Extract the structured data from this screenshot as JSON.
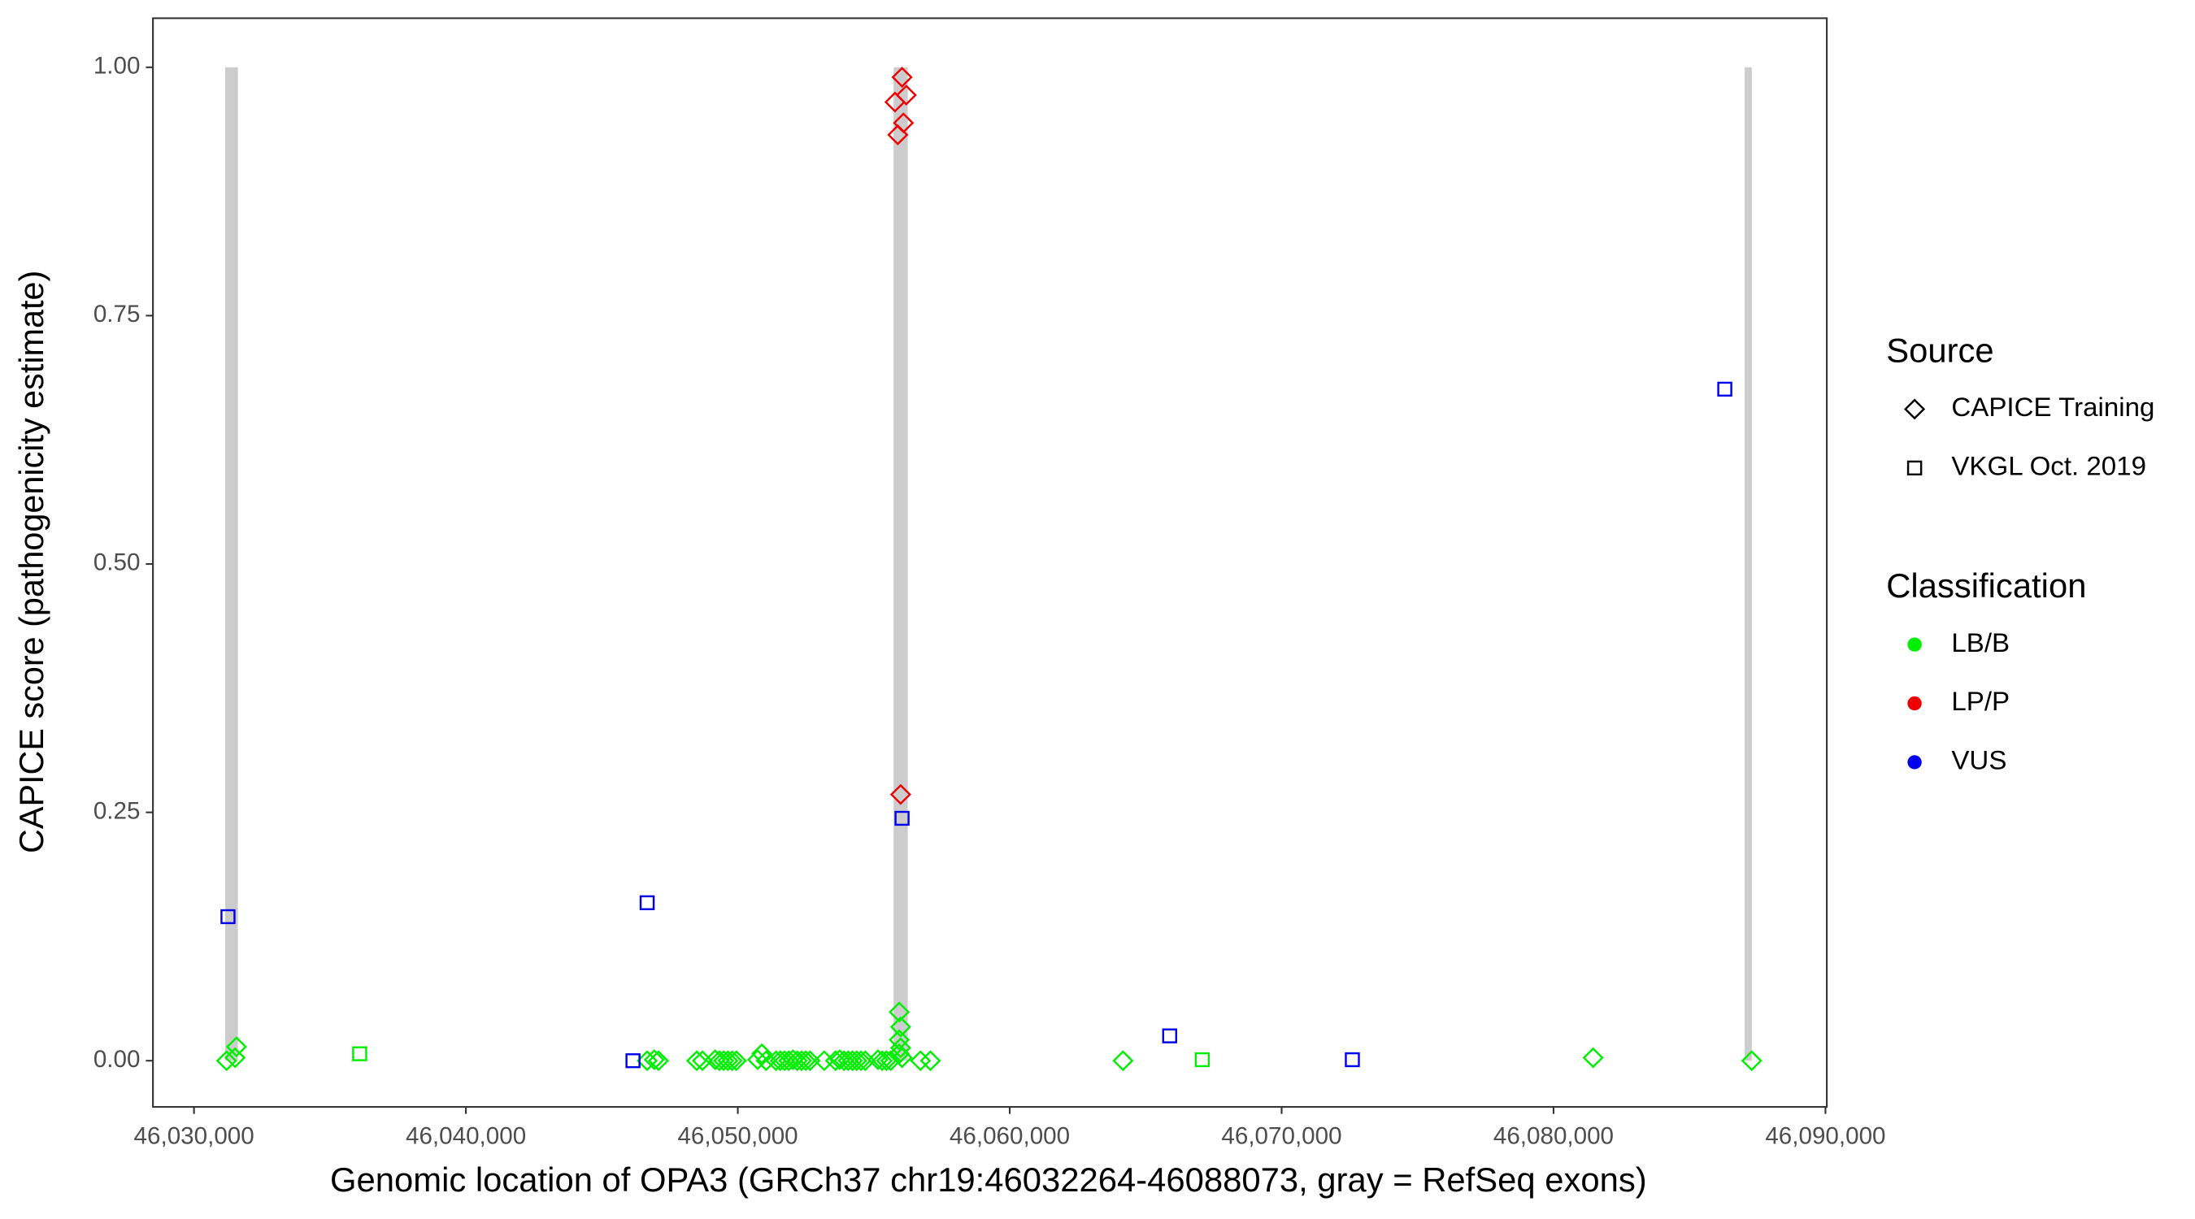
{
  "chart_data": {
    "type": "scatter",
    "xlabel": "Genomic location of OPA3 (GRCh37 chr19:46032264-46088073, gray = RefSeq exons)",
    "ylabel": "CAPICE score (pathogenicity estimate)",
    "xlim": [
      46028490,
      46090050
    ],
    "ylim": [
      -0.0465,
      1.0494
    ],
    "xticks": [
      {
        "value": 46030000,
        "label": "46,030,000"
      },
      {
        "value": 46040000,
        "label": "46,040,000"
      },
      {
        "value": 46050000,
        "label": "46,050,000"
      },
      {
        "value": 46060000,
        "label": "46,060,000"
      },
      {
        "value": 46070000,
        "label": "46,070,000"
      },
      {
        "value": 46080000,
        "label": "46,080,000"
      },
      {
        "value": 46090000,
        "label": "46,090,000"
      }
    ],
    "yticks": [
      {
        "value": 0,
        "label": "0.00"
      },
      {
        "value": 0.25,
        "label": "0.25"
      },
      {
        "value": 0.5,
        "label": "0.50"
      },
      {
        "value": 0.75,
        "label": "0.75"
      },
      {
        "value": 1,
        "label": "1.00"
      }
    ],
    "exons": [
      {
        "start": 46031146,
        "end": 46031615
      },
      {
        "start": 46055729,
        "end": 46056250
      },
      {
        "start": 46087031,
        "end": 46087292
      }
    ],
    "exon_color": "#cccccc",
    "legend": {
      "source": {
        "title": "Source",
        "entries": [
          {
            "name": "CAPICE Training",
            "shape": "diamond"
          },
          {
            "name": "VKGL Oct. 2019",
            "shape": "square"
          }
        ]
      },
      "classification": {
        "title": "Classification",
        "entries": [
          {
            "name": "LB/B",
            "color": "#00ee00"
          },
          {
            "name": "LP/P",
            "color": "#ee0000"
          },
          {
            "name": "VUS",
            "color": "#0000ee"
          }
        ]
      }
    },
    "series": [
      {
        "shape": "diamond",
        "color": "#00ee00",
        "x": [
          46031198,
          46031562,
          46031510,
          46046666,
          46046927,
          46047082,
          46048488,
          46048697,
          46049165,
          46049322,
          46049478,
          46049634,
          46049790,
          46049947,
          46050728,
          46050884,
          46051040,
          46051405,
          46051561,
          46051717,
          46051874,
          46052030,
          46052186,
          46052342,
          46052499,
          46052655,
          46053176,
          46053592,
          46053748,
          46053905,
          46054061,
          46054217,
          46054373,
          46054530,
          46054686,
          46055155,
          46055311,
          46055467,
          46055623,
          46056717,
          46057082,
          46055936,
          46055988,
          46055936,
          46055988,
          46055936,
          46056040,
          46064165,
          46081455,
          46087288
        ],
        "values": [
          0,
          0.014,
          0.003,
          0,
          0.001,
          0,
          0,
          0,
          0.001,
          0,
          0,
          0,
          0,
          0,
          0.001,
          0.007,
          0,
          0,
          0,
          0,
          0,
          0.001,
          0,
          0,
          0,
          0,
          0,
          0,
          0.001,
          0,
          0,
          0,
          0,
          0,
          0,
          0.001,
          0,
          0,
          0,
          0,
          0,
          0.049,
          0.034,
          0.021,
          0.013,
          0.007,
          0.003,
          0,
          0.003,
          0
        ]
      },
      {
        "shape": "diamond",
        "color": "#ee0000",
        "x": [
          46056040,
          46055780,
          46056196,
          46056092,
          46055884,
          46055988
        ],
        "values": [
          0.99,
          0.965,
          0.972,
          0.944,
          0.932,
          0.268
        ]
      },
      {
        "shape": "square",
        "color": "#00ee00",
        "x": [
          46036093,
          46067081
        ],
        "values": [
          0.007,
          0.001
        ]
      },
      {
        "shape": "square",
        "color": "#0000ee",
        "x": [
          46031250,
          46046666,
          46046145,
          46056040,
          46065883,
          46072601,
          46086298
        ],
        "values": [
          0.145,
          0.159,
          0,
          0.244,
          0.025,
          0.001,
          0.676
        ]
      }
    ]
  }
}
